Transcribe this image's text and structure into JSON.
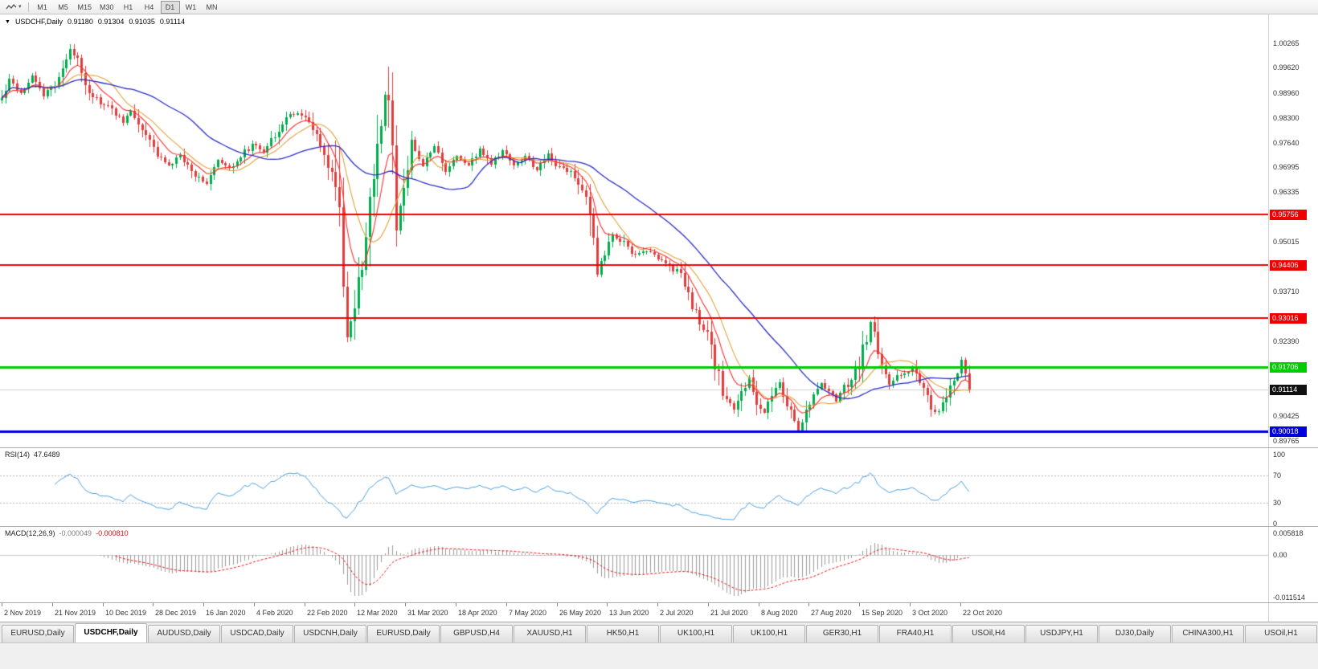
{
  "toolbar": {
    "chart_menu": {
      "icon": "line-chart-icon",
      "dropdown_icon": "▾"
    },
    "timeframes": [
      "M1",
      "M5",
      "M15",
      "M30",
      "H1",
      "H4",
      "D1",
      "W1",
      "MN"
    ],
    "active_timeframe": "D1"
  },
  "chart": {
    "collapse_icon": "▼",
    "symbol_label": "USDCHF,Daily",
    "open": "0.91180",
    "high": "0.91304",
    "low": "0.91035",
    "close": "0.91114",
    "price_axis_ticks": [
      "1.00265",
      "0.99620",
      "0.98960",
      "0.98300",
      "0.97640",
      "0.96995",
      "0.96335",
      "0.95015",
      "0.93710",
      "0.92390",
      "0.90425",
      "0.89765"
    ],
    "levels": [
      {
        "value": "0.95756",
        "color": "#ee0000",
        "thickness": 2,
        "kind": "resistance"
      },
      {
        "value": "0.94406",
        "color": "#ee0000",
        "thickness": 2,
        "kind": "resistance"
      },
      {
        "value": "0.93016",
        "color": "#ee0000",
        "thickness": 2,
        "kind": "resistance"
      },
      {
        "value": "0.91706",
        "color": "#00cc00",
        "thickness": 3,
        "kind": "support"
      },
      {
        "value": "0.90018",
        "color": "#0000dd",
        "thickness": 3,
        "kind": "support"
      }
    ],
    "current_price": {
      "value": "0.91114",
      "badge_color": "#101010"
    }
  },
  "rsi_panel": {
    "name": "RSI(14)",
    "value": "47.6489",
    "ticks": [
      "100",
      "70",
      "30",
      "0"
    ],
    "level_lines": [
      70,
      30
    ],
    "line_color": "#4a9ede"
  },
  "macd_panel": {
    "name": "MACD(12,26,9)",
    "main_value": "-0.000049",
    "signal_value": "-0.000810",
    "ticks": [
      "0.005818",
      "0.00",
      "-0.011514"
    ],
    "max": 0.005818,
    "min": -0.011514,
    "hist_color": "#9a9a9a",
    "signal_color": "#ee1111"
  },
  "date_axis": [
    "2 Nov 2019",
    "21 Nov 2019",
    "10 Dec 2019",
    "28 Dec 2019",
    "16 Jan 2020",
    "4 Feb 2020",
    "22 Feb 2020",
    "12 Mar 2020",
    "31 Mar 2020",
    "18 Apr 2020",
    "7 May 2020",
    "26 May 2020",
    "13 Jun 2020",
    "2 Jul 2020",
    "21 Jul 2020",
    "8 Aug 2020",
    "27 Aug 2020",
    "15 Sep 2020",
    "3 Oct 2020",
    "22 Oct 2020"
  ],
  "tabs": {
    "active_index": 1,
    "items": [
      "EURUSD,Daily",
      "USDCHF,Daily",
      "AUDUSD,Daily",
      "USDCAD,Daily",
      "USDCNH,Daily",
      "EURUSD,Daily",
      "GBPUSD,H4",
      "XAUUSD,H1",
      "HK50,H1",
      "UK100,H1",
      "UK100,H1",
      "GER30,H1",
      "FRA40,H1",
      "USOil,H4",
      "USDJPY,H1",
      "DJ30,Daily",
      "CHINA300,H1",
      "USOil,H1"
    ]
  },
  "colors": {
    "bull": "#00ad4c",
    "bear": "#e23d3d",
    "ma_fast_red": "#ff2d2d",
    "ma_medium_orange": "#e0a23a",
    "ma_slow_blue": "#2a2ec4",
    "current_price_line": "#cfcfcf",
    "background": "#ffffff"
  },
  "chart_data": {
    "type": "candlestick",
    "symbol": "USDCHF",
    "timeframe": "Daily",
    "count": 256,
    "visible_date_range": [
      "2 Nov 2019",
      "26 Oct 2020"
    ],
    "price_axis_range": [
      0.896,
      1.0103
    ],
    "last_ohlc": [
      0.9118,
      0.91304,
      0.91035,
      0.91114
    ],
    "ma_periods": {
      "red_ema": 8,
      "orange_sma": 13,
      "blue_sma": 34
    },
    "indicators": [
      {
        "name": "RSI",
        "period": 14,
        "last": 47.6489,
        "range": [
          0,
          100
        ],
        "levels": [
          70,
          30
        ]
      },
      {
        "name": "MACD",
        "fast": 12,
        "slow": 26,
        "signal": 9,
        "last_main": -4.9e-05,
        "last_signal": -0.00081,
        "range": [
          -0.011514,
          0.005818
        ]
      }
    ],
    "price_waypoints": [
      [
        0,
        0.988
      ],
      [
        2,
        0.9935
      ],
      [
        5,
        0.9895
      ],
      [
        8,
        0.9945
      ],
      [
        11,
        0.9888
      ],
      [
        14,
        0.992
      ],
      [
        18,
        1.0005
      ],
      [
        20,
        0.9988
      ],
      [
        23,
        0.99
      ],
      [
        26,
        0.9868
      ],
      [
        29,
        0.9852
      ],
      [
        32,
        0.982
      ],
      [
        34,
        0.9848
      ],
      [
        37,
        0.98
      ],
      [
        40,
        0.9748
      ],
      [
        44,
        0.97
      ],
      [
        47,
        0.973
      ],
      [
        50,
        0.9688
      ],
      [
        54,
        0.9658
      ],
      [
        57,
        0.9715
      ],
      [
        60,
        0.9695
      ],
      [
        63,
        0.973
      ],
      [
        66,
        0.9758
      ],
      [
        69,
        0.9742
      ],
      [
        72,
        0.9788
      ],
      [
        75,
        0.9828
      ],
      [
        78,
        0.9846
      ],
      [
        81,
        0.9815
      ],
      [
        84,
        0.9755
      ],
      [
        87,
        0.9685
      ],
      [
        89,
        0.9565
      ],
      [
        91,
        0.9245
      ],
      [
        93,
        0.933
      ],
      [
        95,
        0.945
      ],
      [
        97,
        0.959
      ],
      [
        99,
        0.976
      ],
      [
        101,
        0.9885
      ],
      [
        102,
        0.986
      ],
      [
        103,
        0.974
      ],
      [
        104,
        0.954
      ],
      [
        106,
        0.965
      ],
      [
        108,
        0.976
      ],
      [
        111,
        0.9705
      ],
      [
        114,
        0.9755
      ],
      [
        117,
        0.9685
      ],
      [
        120,
        0.973
      ],
      [
        123,
        0.9702
      ],
      [
        126,
        0.9748
      ],
      [
        129,
        0.9708
      ],
      [
        132,
        0.9742
      ],
      [
        135,
        0.9705
      ],
      [
        138,
        0.9728
      ],
      [
        141,
        0.9692
      ],
      [
        144,
        0.9735
      ],
      [
        147,
        0.9698
      ],
      [
        150,
        0.9688
      ],
      [
        153,
        0.9645
      ],
      [
        155,
        0.9565
      ],
      [
        157,
        0.943
      ],
      [
        159,
        0.9465
      ],
      [
        161,
        0.952
      ],
      [
        164,
        0.9498
      ],
      [
        167,
        0.9465
      ],
      [
        170,
        0.948
      ],
      [
        173,
        0.946
      ],
      [
        176,
        0.944
      ],
      [
        179,
        0.9415
      ],
      [
        181,
        0.936
      ],
      [
        184,
        0.929
      ],
      [
        186,
        0.925
      ],
      [
        188,
        0.918
      ],
      [
        190,
        0.9105
      ],
      [
        193,
        0.906
      ],
      [
        195,
        0.91
      ],
      [
        197,
        0.914
      ],
      [
        199,
        0.9085
      ],
      [
        201,
        0.905
      ],
      [
        203,
        0.9095
      ],
      [
        205,
        0.913
      ],
      [
        207,
        0.907
      ],
      [
        209,
        0.903
      ],
      [
        210,
        0.9005
      ],
      [
        212,
        0.906
      ],
      [
        214,
        0.9095
      ],
      [
        216,
        0.913
      ],
      [
        218,
        0.911
      ],
      [
        220,
        0.9085
      ],
      [
        222,
        0.912
      ],
      [
        224,
        0.9135
      ],
      [
        226,
        0.918
      ],
      [
        228,
        0.925
      ],
      [
        229,
        0.929
      ],
      [
        230,
        0.9255
      ],
      [
        232,
        0.918
      ],
      [
        234,
        0.913
      ],
      [
        236,
        0.9148
      ],
      [
        238,
        0.9155
      ],
      [
        240,
        0.917
      ],
      [
        242,
        0.913
      ],
      [
        244,
        0.9085
      ],
      [
        246,
        0.905
      ],
      [
        248,
        0.907
      ],
      [
        250,
        0.911
      ],
      [
        252,
        0.916
      ],
      [
        253,
        0.9185
      ],
      [
        254,
        0.915
      ],
      [
        255,
        0.9111
      ]
    ]
  }
}
